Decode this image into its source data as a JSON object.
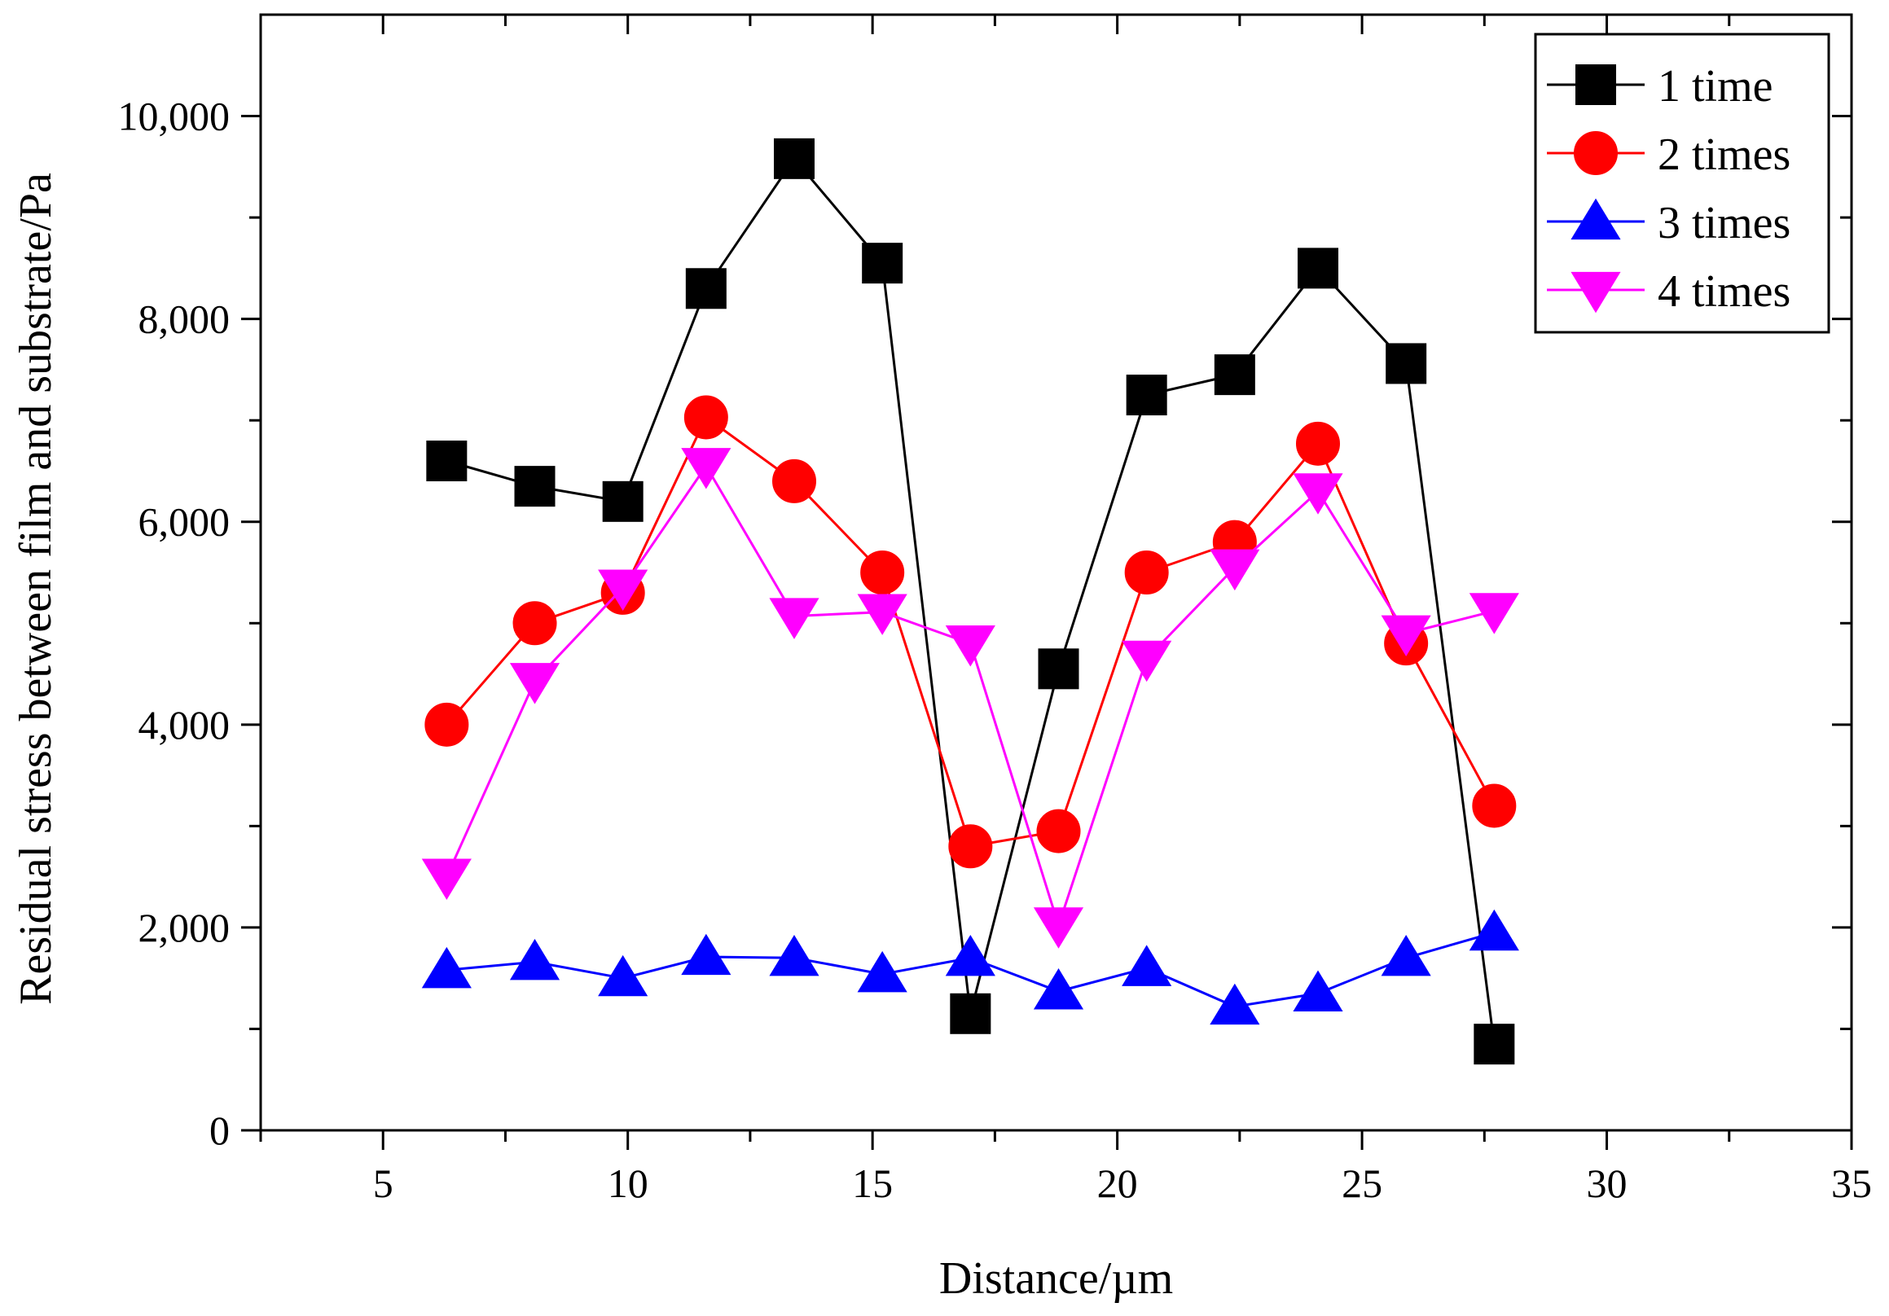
{
  "chart_data": {
    "type": "line",
    "xlabel": "Distance/µm",
    "ylabel": "Residual stress between film and substrate/Pa",
    "xlim": [
      2.5,
      35
    ],
    "ylim": [
      0,
      11000
    ],
    "x_ticks": [
      5,
      10,
      15,
      20,
      25,
      30,
      35
    ],
    "x_tick_labels": [
      "5",
      "10",
      "15",
      "20",
      "25",
      "30",
      "35"
    ],
    "y_ticks": [
      0,
      2000,
      4000,
      6000,
      8000,
      10000
    ],
    "y_tick_labels": [
      "0",
      "2,000",
      "4,000",
      "6,000",
      "8,000",
      "10,000"
    ],
    "legend_position": "top-right",
    "x": [
      6.3,
      8.1,
      9.9,
      11.6,
      13.4,
      15.2,
      17.0,
      18.8,
      20.6,
      22.4,
      24.1,
      25.9,
      27.7
    ],
    "series": [
      {
        "name": "1 time",
        "color": "#000000",
        "marker": "square",
        "values": [
          6600,
          6350,
          6200,
          8300,
          9580,
          8550,
          1150,
          4550,
          7250,
          7450,
          8500,
          7560,
          850
        ]
      },
      {
        "name": "2 times",
        "color": "#ff0000",
        "marker": "circle",
        "values": [
          4000,
          5000,
          5300,
          7030,
          6400,
          5500,
          2800,
          2950,
          5500,
          5800,
          6770,
          4800,
          3200
        ]
      },
      {
        "name": "3 times",
        "color": "#0000ff",
        "marker": "triangle-up",
        "values": [
          1580,
          1660,
          1500,
          1710,
          1700,
          1540,
          1700,
          1370,
          1600,
          1220,
          1350,
          1700,
          1950
        ]
      },
      {
        "name": "4 times",
        "color": "#ff00ff",
        "marker": "triangle-down",
        "values": [
          2500,
          4430,
          5350,
          6550,
          5070,
          5110,
          4800,
          2020,
          4650,
          5550,
          6300,
          4900,
          5120
        ]
      }
    ]
  }
}
